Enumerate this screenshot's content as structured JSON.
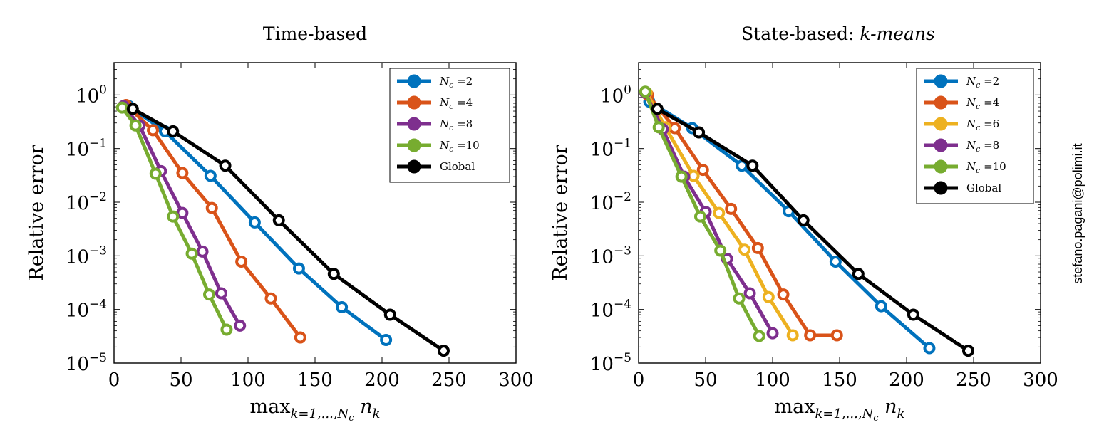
{
  "watermark": "stefano.pagani@polimi.it",
  "chart_data": [
    {
      "type": "line",
      "title": "Time-based",
      "ylabel": "Relative error",
      "xlabel_base": "max",
      "xlabel_sub": "k=1,...,N_c",
      "xlabel_var": "n",
      "xlabel_var_sub": "k",
      "xlim": [
        0,
        300
      ],
      "ylim": [
        1e-05,
        4
      ],
      "yscale": "log",
      "xticks": [
        0,
        50,
        100,
        150,
        200,
        250,
        300
      ],
      "yticks": [
        1,
        0.1,
        0.01,
        0.001,
        0.0001,
        1e-05
      ],
      "ytick_exponents": [
        "0",
        "−1",
        "−2",
        "−3",
        "−4",
        "−5"
      ],
      "legend_position": "top-right",
      "series": [
        {
          "name": "N_c =2",
          "color": "#0072BD",
          "x": [
            11,
            38,
            72,
            105,
            138,
            170,
            203
          ],
          "y": [
            0.62,
            0.21,
            0.031,
            0.0042,
            0.00058,
            0.00011,
            2.7e-05
          ]
        },
        {
          "name": "N_c =4",
          "color": "#D95319",
          "x": [
            9,
            29,
            51,
            73,
            95,
            117,
            139
          ],
          "y": [
            0.65,
            0.22,
            0.035,
            0.0078,
            0.00078,
            0.00016,
            3e-05
          ]
        },
        {
          "name": "N_c =8",
          "color": "#7E2F8E",
          "x": [
            7,
            19,
            35,
            51,
            66,
            80,
            94
          ],
          "y": [
            0.62,
            0.27,
            0.038,
            0.0063,
            0.0012,
            0.0002,
            5e-05
          ]
        },
        {
          "name": "N_c =10",
          "color": "#77AC30",
          "x": [
            6,
            16,
            31,
            44,
            58,
            71,
            84
          ],
          "y": [
            0.58,
            0.27,
            0.034,
            0.0054,
            0.0011,
            0.00019,
            4.2e-05
          ]
        },
        {
          "name": "Global",
          "color": "#000000",
          "x": [
            14,
            44,
            83,
            123,
            164,
            206,
            246
          ],
          "y": [
            0.55,
            0.21,
            0.048,
            0.0046,
            0.00046,
            8e-05,
            1.7e-05
          ]
        }
      ]
    },
    {
      "type": "line",
      "title_prefix": "State-based: ",
      "title_italic": "k-means",
      "ylabel": "Relative error",
      "xlabel_base": "max",
      "xlabel_sub": "k=1,...,N_c",
      "xlabel_var": "n",
      "xlabel_var_sub": "k",
      "xlim": [
        0,
        300
      ],
      "ylim": [
        1e-05,
        4
      ],
      "yscale": "log",
      "xticks": [
        0,
        50,
        100,
        150,
        200,
        250,
        300
      ],
      "yticks": [
        1,
        0.1,
        0.01,
        0.001,
        0.0001,
        1e-05
      ],
      "ytick_exponents": [
        "0",
        "−1",
        "−2",
        "−3",
        "−4",
        "−5"
      ],
      "legend_position": "top-right",
      "series": [
        {
          "name": "N_c =2",
          "color": "#0072BD",
          "x": [
            8,
            40,
            77,
            112,
            147,
            181,
            217
          ],
          "y": [
            0.75,
            0.24,
            0.048,
            0.0068,
            0.00078,
            0.000115,
            1.9e-05
          ]
        },
        {
          "name": "N_c =4",
          "color": "#D95319",
          "x": [
            7,
            27,
            48,
            69,
            89,
            108,
            128,
            148
          ],
          "y": [
            1.0,
            0.24,
            0.04,
            0.0075,
            0.0014,
            0.00019,
            3.3e-05,
            3.3e-05
          ]
        },
        {
          "name": "N_c =6",
          "color": "#EDB120",
          "x": [
            6,
            20,
            41,
            60,
            79,
            97,
            115
          ],
          "y": [
            1.1,
            0.25,
            0.031,
            0.0063,
            0.0013,
            0.00017,
            3.3e-05
          ]
        },
        {
          "name": "N_c =8",
          "color": "#7E2F8E",
          "x": [
            5,
            18,
            34,
            50,
            66,
            83,
            100
          ],
          "y": [
            1.1,
            0.23,
            0.03,
            0.0066,
            0.00088,
            0.0002,
            3.6e-05
          ]
        },
        {
          "name": "N_c =10",
          "color": "#77AC30",
          "x": [
            5,
            15,
            32,
            46,
            61,
            75,
            90
          ],
          "y": [
            1.15,
            0.25,
            0.03,
            0.0054,
            0.00125,
            0.00016,
            3.2e-05
          ]
        },
        {
          "name": "Global",
          "color": "#000000",
          "x": [
            14,
            45,
            85,
            123,
            164,
            205,
            246
          ],
          "y": [
            0.55,
            0.2,
            0.048,
            0.0046,
            0.00046,
            8e-05,
            1.7e-05
          ]
        }
      ]
    }
  ]
}
